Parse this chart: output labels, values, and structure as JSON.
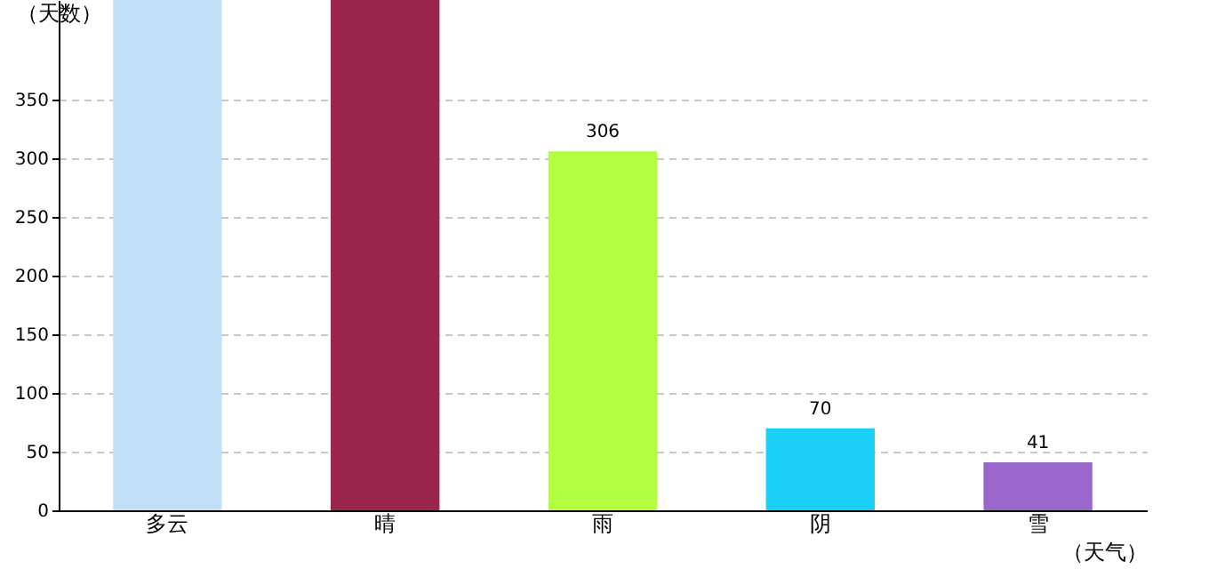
{
  "chart_data": {
    "type": "bar",
    "xlabel": "（天气）",
    "ylabel": "（天数）",
    "categories": [
      "多云",
      "晴",
      "雨",
      "阴",
      "雪"
    ],
    "values": [
      435,
      435,
      306,
      70,
      41
    ],
    "colors": [
      "#c2dffa",
      "#9c2550",
      "#b2ff40",
      "#1ad0f8",
      "#9966cc"
    ],
    "value_labels": [
      null,
      null,
      "306",
      "70",
      "41"
    ],
    "ylim": [
      0,
      435
    ],
    "yticks": [
      0,
      50,
      100,
      150,
      200,
      250,
      300,
      350
    ],
    "grid": "y"
  }
}
